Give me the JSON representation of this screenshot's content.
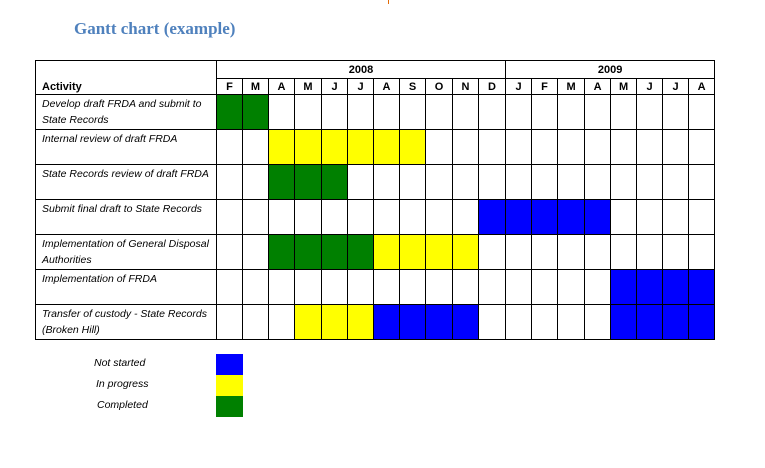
{
  "title": "Gantt chart (example)",
  "colors": {
    "not_started": "#0000ff",
    "in_progress": "#ffff00",
    "completed": "#008000",
    "title": "#4f81bd"
  },
  "table": {
    "activity_header": "Activity",
    "years": [
      {
        "label": "2008",
        "span": 11
      },
      {
        "label": "2009",
        "span": 8
      }
    ],
    "months": [
      "F",
      "M",
      "A",
      "M",
      "J",
      "J",
      "A",
      "S",
      "O",
      "N",
      "D",
      "J",
      "F",
      "M",
      "A",
      "M",
      "J",
      "J",
      "A"
    ],
    "rows": [
      {
        "activity": "Develop draft FRDA and submit to State Records",
        "cells": [
          "completed",
          "completed",
          "",
          "",
          "",
          "",
          "",
          "",
          "",
          "",
          "",
          "",
          "",
          "",
          "",
          "",
          "",
          "",
          ""
        ]
      },
      {
        "activity": "Internal review of draft FRDA",
        "cells": [
          "",
          "",
          "in_progress",
          "in_progress",
          "in_progress",
          "in_progress",
          "in_progress",
          "in_progress",
          "",
          "",
          "",
          "",
          "",
          "",
          "",
          "",
          "",
          "",
          ""
        ]
      },
      {
        "activity": "State Records review of draft FRDA",
        "cells": [
          "",
          "",
          "completed",
          "completed",
          "completed",
          "",
          "",
          "",
          "",
          "",
          "",
          "",
          "",
          "",
          "",
          "",
          "",
          "",
          ""
        ]
      },
      {
        "activity": "Submit final draft to State Records",
        "cells": [
          "",
          "",
          "",
          "",
          "",
          "",
          "",
          "",
          "",
          "",
          "not_started",
          "not_started",
          "not_started",
          "not_started",
          "not_started",
          "",
          "",
          "",
          ""
        ]
      },
      {
        "activity": "Implementation of General Disposal Authorities",
        "cells": [
          "",
          "",
          "completed",
          "completed",
          "completed",
          "completed",
          "in_progress",
          "in_progress",
          "in_progress",
          "in_progress",
          "",
          "",
          "",
          "",
          "",
          "",
          "",
          "",
          ""
        ]
      },
      {
        "activity": "Implementation of FRDA",
        "cells": [
          "",
          "",
          "",
          "",
          "",
          "",
          "",
          "",
          "",
          "",
          "",
          "",
          "",
          "",
          "",
          "not_started",
          "not_started",
          "not_started",
          "not_started"
        ]
      },
      {
        "activity": "Transfer of custody - State Records (Broken Hill)",
        "cells": [
          "",
          "",
          "",
          "in_progress",
          "in_progress",
          "in_progress",
          "not_started",
          "not_started",
          "not_started",
          "not_started",
          "",
          "",
          "",
          "",
          "",
          "not_started",
          "not_started",
          "not_started",
          "not_started"
        ]
      }
    ]
  },
  "legend": [
    {
      "label": "Not started",
      "status": "not_started"
    },
    {
      "label": "In progress",
      "status": "in_progress"
    },
    {
      "label": "Completed",
      "status": "completed"
    }
  ]
}
